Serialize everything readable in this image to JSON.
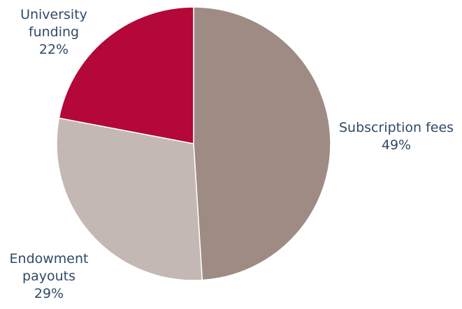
{
  "chart_data": {
    "type": "pie",
    "slices": [
      {
        "label": [
          "Subscription fees"
        ],
        "value_label": "49%",
        "value": 49,
        "color": "#9e8c84"
      },
      {
        "label": [
          "Endowment",
          "payouts"
        ],
        "value_label": "29%",
        "value": 29,
        "color": "#c3b8b3"
      },
      {
        "label": [
          "University",
          "funding"
        ],
        "value_label": "22%",
        "value": 22,
        "color": "#b30838"
      }
    ],
    "start_angle": "12 o'clock",
    "direction": "clockwise",
    "legend": "none",
    "label_color": "#2f4a66"
  }
}
